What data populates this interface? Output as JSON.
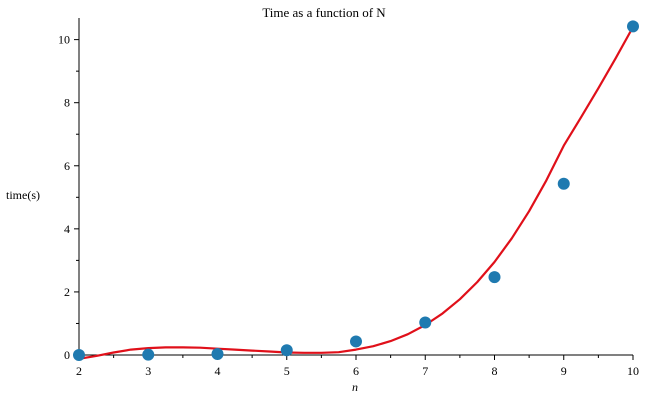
{
  "chart_data": {
    "type": "scatter",
    "title": "Time as a function of N",
    "xlabel": "n",
    "ylabel": "time(s)",
    "xlim": [
      2,
      10
    ],
    "ylim": [
      0,
      10.4
    ],
    "x_ticks": [
      2,
      3,
      4,
      5,
      6,
      7,
      8,
      9,
      10
    ],
    "y_ticks": [
      0,
      2,
      4,
      6,
      8,
      10
    ],
    "grid": false,
    "series": [
      {
        "kind": "points",
        "color": "#1f7ab0",
        "x": [
          2,
          3,
          4,
          5,
          6,
          7,
          8,
          9,
          10
        ],
        "y": [
          0.0,
          0.01,
          0.03,
          0.15,
          0.43,
          1.03,
          2.47,
          5.43,
          10.42
        ]
      },
      {
        "kind": "fit-curve",
        "color": "#e0101a",
        "x": [
          2.0,
          2.25,
          2.5,
          2.75,
          3.0,
          3.25,
          3.5,
          3.75,
          4.0,
          4.25,
          4.5,
          4.75,
          5.0,
          5.25,
          5.5,
          5.75,
          6.0,
          6.25,
          6.5,
          6.75,
          7.0,
          7.25,
          7.5,
          7.75,
          8.0,
          8.25,
          8.5,
          8.75,
          9.0,
          9.25,
          9.5,
          9.75,
          10.0
        ],
        "y": [
          -0.12,
          -0.03,
          0.08,
          0.17,
          0.22,
          0.24,
          0.24,
          0.23,
          0.2,
          0.17,
          0.14,
          0.11,
          0.08,
          0.07,
          0.07,
          0.09,
          0.17,
          0.28,
          0.44,
          0.66,
          0.95,
          1.32,
          1.77,
          2.31,
          2.95,
          3.7,
          4.56,
          5.54,
          6.64,
          7.54,
          8.46,
          9.41,
          10.4
        ]
      }
    ]
  }
}
